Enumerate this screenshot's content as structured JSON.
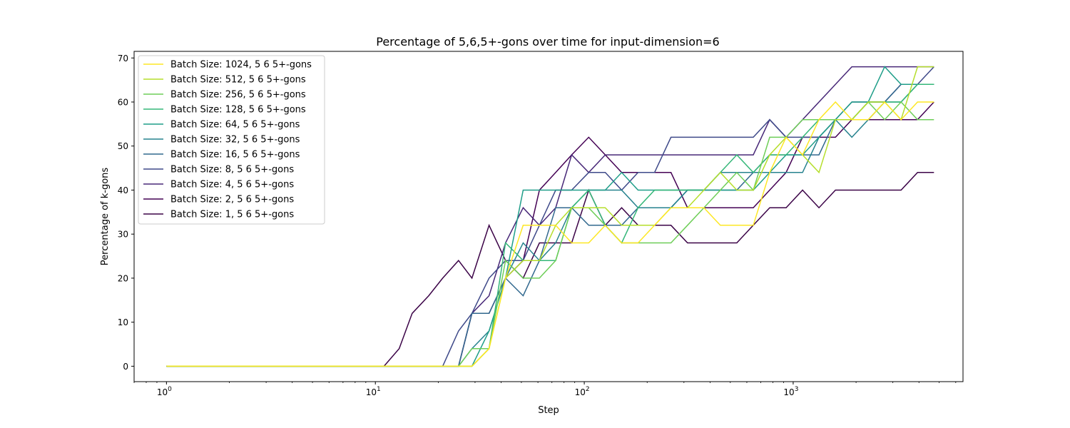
{
  "chart_data": {
    "type": "line",
    "title": "Percentage of 5,6,5+-gons over time for input-dimension=6",
    "xlabel": "Step",
    "ylabel": "Percentage of k-gons",
    "xscale": "log",
    "xlim": [
      0.7,
      6500
    ],
    "ylim": [
      -3.5,
      71.5
    ],
    "yticks": [
      0,
      10,
      20,
      30,
      40,
      50,
      60,
      70
    ],
    "xticks": [
      {
        "value": 1,
        "base": "10",
        "exp": "0"
      },
      {
        "value": 10,
        "base": "10",
        "exp": "1"
      },
      {
        "value": 100,
        "base": "10",
        "exp": "2"
      },
      {
        "value": 1000,
        "base": "10",
        "exp": "3"
      }
    ],
    "legend_position": "top-left",
    "x": [
      1,
      2,
      3,
      5,
      8,
      11,
      13,
      15,
      18,
      21,
      25,
      29,
      35,
      42,
      51,
      61,
      73,
      87,
      105,
      126,
      151,
      181,
      217,
      260,
      312,
      374,
      448,
      537,
      644,
      772,
      925,
      1109,
      1329,
      1593,
      1909,
      2288,
      2742,
      3286,
      3938,
      4719
    ],
    "series": [
      {
        "name": "Batch Size: 1024, 5 6 5+-gons",
        "color": "#fde725",
        "values": [
          0,
          0,
          0,
          0,
          0,
          0,
          0,
          0,
          0,
          0,
          0,
          0,
          4,
          20,
          32,
          32,
          32,
          28,
          28,
          32,
          28,
          28,
          32,
          36,
          36,
          36,
          32,
          32,
          32,
          44,
          52,
          48,
          56,
          60,
          56,
          56,
          60,
          56,
          60,
          60
        ]
      },
      {
        "name": "Batch Size: 512, 5 6 5+-gons",
        "color": "#b5de2b",
        "values": [
          0,
          0,
          0,
          0,
          0,
          0,
          0,
          0,
          0,
          0,
          0,
          0,
          4,
          20,
          24,
          24,
          32,
          36,
          36,
          36,
          32,
          32,
          32,
          36,
          36,
          40,
          44,
          40,
          40,
          48,
          52,
          48,
          44,
          56,
          56,
          60,
          60,
          56,
          68,
          68
        ]
      },
      {
        "name": "Batch Size: 256, 5 6 5+-gons",
        "color": "#6ece58",
        "values": [
          0,
          0,
          0,
          0,
          0,
          0,
          0,
          0,
          0,
          0,
          0,
          4,
          4,
          24,
          20,
          20,
          24,
          36,
          36,
          32,
          28,
          28,
          28,
          28,
          32,
          36,
          40,
          44,
          40,
          52,
          52,
          56,
          56,
          56,
          56,
          60,
          56,
          60,
          56,
          56
        ]
      },
      {
        "name": "Batch Size: 128, 5 6 5+-gons",
        "color": "#35b779",
        "values": [
          0,
          0,
          0,
          0,
          0,
          0,
          0,
          0,
          0,
          0,
          0,
          0,
          4,
          28,
          24,
          24,
          24,
          36,
          40,
          32,
          28,
          36,
          40,
          40,
          40,
          40,
          44,
          48,
          44,
          48,
          48,
          52,
          56,
          56,
          56,
          60,
          60,
          60,
          64,
          64
        ]
      },
      {
        "name": "Batch Size: 64, 5 6 5+-gons",
        "color": "#1f9e89",
        "values": [
          0,
          0,
          0,
          0,
          0,
          0,
          0,
          0,
          0,
          0,
          0,
          0,
          8,
          20,
          40,
          40,
          40,
          40,
          40,
          40,
          44,
          40,
          40,
          40,
          40,
          40,
          40,
          40,
          40,
          44,
          48,
          48,
          52,
          56,
          60,
          60,
          68,
          64,
          64,
          64
        ]
      },
      {
        "name": "Batch Size: 32, 5 6 5+-gons",
        "color": "#26828e",
        "values": [
          0,
          0,
          0,
          0,
          0,
          0,
          0,
          0,
          0,
          0,
          0,
          4,
          8,
          20,
          28,
          24,
          28,
          36,
          40,
          40,
          40,
          36,
          36,
          36,
          40,
          40,
          44,
          44,
          44,
          44,
          44,
          44,
          52,
          56,
          52,
          56,
          60,
          60,
          64,
          64
        ]
      },
      {
        "name": "Batch Size: 16, 5 6 5+-gons",
        "color": "#31688e",
        "values": [
          0,
          0,
          0,
          0,
          0,
          0,
          0,
          0,
          0,
          0,
          0,
          12,
          12,
          20,
          16,
          24,
          36,
          36,
          32,
          32,
          32,
          36,
          36,
          36,
          40,
          40,
          40,
          40,
          44,
          48,
          48,
          48,
          48,
          56,
          56,
          60,
          60,
          64,
          64,
          64
        ]
      },
      {
        "name": "Batch Size: 8, 5 6 5+-gons",
        "color": "#3e4989",
        "values": [
          0,
          0,
          0,
          0,
          0,
          0,
          0,
          0,
          0,
          0,
          8,
          12,
          20,
          24,
          24,
          32,
          40,
          40,
          44,
          44,
          40,
          44,
          44,
          52,
          52,
          52,
          52,
          52,
          52,
          56,
          52,
          52,
          52,
          56,
          60,
          60,
          60,
          64,
          64,
          68
        ]
      },
      {
        "name": "Batch Size: 4, 5 6 5+-gons",
        "color": "#482878",
        "values": [
          0,
          0,
          0,
          0,
          0,
          0,
          0,
          0,
          0,
          0,
          0,
          12,
          16,
          28,
          36,
          32,
          36,
          48,
          44,
          48,
          48,
          48,
          48,
          48,
          48,
          48,
          48,
          48,
          48,
          56,
          52,
          56,
          60,
          64,
          68,
          68,
          68,
          68,
          68,
          68
        ]
      },
      {
        "name": "Batch Size: 2, 5 6 5+-gons",
        "color": "#440154",
        "values": [
          0,
          0,
          0,
          0,
          0,
          0,
          0,
          0,
          0,
          0,
          0,
          12,
          12,
          20,
          24,
          40,
          44,
          48,
          52,
          48,
          44,
          44,
          44,
          44,
          36,
          36,
          36,
          36,
          36,
          40,
          44,
          52,
          52,
          52,
          56,
          56,
          56,
          56,
          56,
          60
        ]
      },
      {
        "name": "Batch Size: 1, 5 6 5+-gons",
        "color": "#3b0347",
        "values": [
          0,
          0,
          0,
          0,
          0,
          0,
          4,
          12,
          16,
          20,
          24,
          20,
          32,
          24,
          20,
          28,
          28,
          28,
          40,
          32,
          36,
          32,
          32,
          32,
          28,
          28,
          28,
          28,
          32,
          36,
          36,
          40,
          36,
          40,
          40,
          40,
          40,
          40,
          44,
          44
        ]
      }
    ]
  }
}
